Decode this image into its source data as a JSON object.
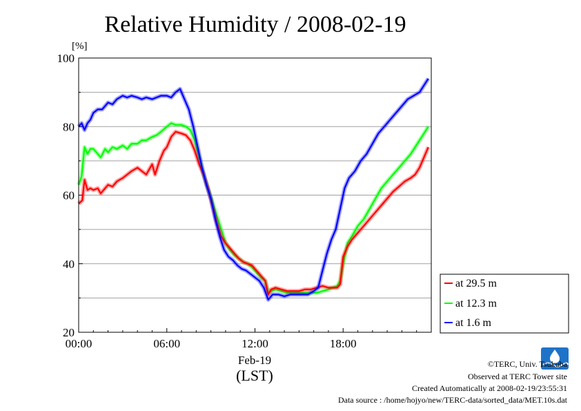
{
  "chart_data": {
    "type": "line",
    "title": "Relative Humidity / 2008-02-19",
    "ylabel": "[%]",
    "xlabel": "(LST)",
    "x_date_label": "Feb-19",
    "x_ticks": [
      "00:00",
      "06:00",
      "12:00",
      "18:00"
    ],
    "x_tick_hours": [
      0,
      6,
      12,
      18
    ],
    "xlim_hours": [
      0,
      24
    ],
    "ylim": [
      20,
      100
    ],
    "y_ticks": [
      20,
      40,
      60,
      80,
      100
    ],
    "grid": true,
    "legend_position": "right",
    "series": [
      {
        "name": "at 29.5 m",
        "color": "#ff0000",
        "x_hours": [
          0,
          0.25,
          0.4,
          0.6,
          0.8,
          1.0,
          1.3,
          1.5,
          1.8,
          2.0,
          2.3,
          2.6,
          3.0,
          3.3,
          3.6,
          4.0,
          4.3,
          4.6,
          5.0,
          5.2,
          5.5,
          5.8,
          6.0,
          6.3,
          6.6,
          7.0,
          7.3,
          7.6,
          7.9,
          8.2,
          8.5,
          8.8,
          9.1,
          9.4,
          9.7,
          10.0,
          10.3,
          10.6,
          10.9,
          11.2,
          11.5,
          11.8,
          12.1,
          12.4,
          12.7,
          12.9,
          13.1,
          13.4,
          13.8,
          14.2,
          14.6,
          15.0,
          15.4,
          15.8,
          16.2,
          16.6,
          17.0,
          17.3,
          17.6,
          17.8,
          18.0,
          18.3,
          18.6,
          19.0,
          19.4,
          19.8,
          20.2,
          20.6,
          21.0,
          21.4,
          21.8,
          22.2,
          22.6,
          22.9,
          23.2,
          23.5,
          23.8
        ],
        "values": [
          57.5,
          58.5,
          64.5,
          61.5,
          62,
          61.5,
          62,
          60.5,
          62,
          63,
          62.5,
          64,
          65,
          66,
          67,
          68,
          67,
          66,
          69,
          66,
          70,
          73,
          74,
          77,
          78.5,
          78,
          77.5,
          76,
          73,
          69,
          66,
          62,
          57,
          52,
          48,
          46,
          44.5,
          43,
          41.5,
          40.5,
          40,
          39.5,
          38,
          36.5,
          35,
          31,
          32.5,
          33,
          32.5,
          32,
          32,
          32,
          32.5,
          32.5,
          33,
          33.5,
          33,
          33,
          33,
          34,
          42,
          45,
          47,
          49,
          51,
          53,
          55,
          57,
          59,
          61,
          62.5,
          64,
          65,
          66,
          68,
          71,
          74
        ]
      },
      {
        "name": "at 12.3 m",
        "color": "#00ff00",
        "x_hours": [
          0,
          0.2,
          0.4,
          0.6,
          0.8,
          1.0,
          1.3,
          1.5,
          1.8,
          2.0,
          2.3,
          2.6,
          3.0,
          3.3,
          3.6,
          4.0,
          4.3,
          4.6,
          5.0,
          5.3,
          5.6,
          6.0,
          6.3,
          6.6,
          7.0,
          7.3,
          7.6,
          7.9,
          8.2,
          8.5,
          8.8,
          9.1,
          9.4,
          9.7,
          10.0,
          10.3,
          10.6,
          10.9,
          11.2,
          11.5,
          11.8,
          12.1,
          12.4,
          12.7,
          12.9,
          13.1,
          13.4,
          13.8,
          14.2,
          14.6,
          15.0,
          15.4,
          15.8,
          16.2,
          16.6,
          17.0,
          17.3,
          17.6,
          17.8,
          18.0,
          18.3,
          18.6,
          19.0,
          19.4,
          19.8,
          20.2,
          20.6,
          21.0,
          21.4,
          21.8,
          22.2,
          22.6,
          22.9,
          23.2,
          23.5,
          23.8
        ],
        "values": [
          63,
          65.5,
          74,
          72,
          73.5,
          73.5,
          72,
          71,
          73.5,
          72.5,
          74,
          73.5,
          74.5,
          73.5,
          75,
          75,
          76,
          76,
          77,
          77.5,
          78.5,
          80,
          81,
          80.5,
          80.5,
          80,
          79,
          76,
          71,
          66,
          62,
          58,
          54,
          50,
          46,
          44,
          42.5,
          41.5,
          40.5,
          40,
          39,
          37.5,
          36,
          35,
          31.5,
          32,
          32.5,
          32,
          31.5,
          31.5,
          31.5,
          31.5,
          31.5,
          31.5,
          32,
          32.5,
          33,
          33.5,
          35,
          40,
          46,
          48,
          51,
          53,
          56,
          59,
          62,
          64,
          66,
          68,
          70,
          72,
          74,
          76,
          78,
          80
        ]
      },
      {
        "name": "at 1.6 m",
        "color": "#0000ff",
        "x_hours": [
          0,
          0.2,
          0.4,
          0.6,
          0.8,
          1.0,
          1.3,
          1.6,
          2.0,
          2.3,
          2.6,
          3.0,
          3.3,
          3.6,
          4.0,
          4.3,
          4.6,
          5.0,
          5.3,
          5.6,
          6.0,
          6.3,
          6.6,
          6.9,
          7.2,
          7.5,
          7.8,
          8.1,
          8.4,
          8.7,
          9.0,
          9.3,
          9.6,
          9.9,
          10.2,
          10.5,
          10.8,
          11.1,
          11.4,
          11.7,
          12.0,
          12.3,
          12.6,
          12.9,
          13.2,
          13.6,
          14.0,
          14.4,
          14.8,
          15.2,
          15.6,
          16.0,
          16.3,
          16.6,
          16.9,
          17.2,
          17.5,
          17.8,
          18.1,
          18.4,
          18.8,
          19.2,
          19.6,
          20.0,
          20.4,
          20.8,
          21.2,
          21.6,
          22.0,
          22.4,
          22.8,
          23.2,
          23.5,
          23.8
        ],
        "values": [
          80,
          81,
          79,
          81,
          82,
          84,
          85,
          85,
          87,
          86.5,
          88,
          89,
          88.5,
          89,
          88.5,
          88,
          88.5,
          88,
          88.5,
          89,
          89,
          88.5,
          90,
          91,
          88,
          85,
          80,
          74,
          68,
          63,
          59,
          53,
          48,
          44,
          42,
          41,
          39.5,
          38.5,
          38,
          37,
          36,
          35,
          33,
          29.5,
          31,
          31,
          30.5,
          31,
          31,
          31,
          31,
          32,
          33,
          38,
          43,
          47,
          50,
          56,
          62,
          65,
          67,
          70,
          72,
          75,
          78,
          80,
          82,
          84,
          86,
          88,
          89,
          90,
          92,
          94
        ]
      }
    ]
  },
  "credits": {
    "copyright": "©TERC, Univ. Tsukuba",
    "site": "Observed at TERC Tower site",
    "created": "Created Automatically at 2008-02-19/23:55:31",
    "source": "Data source : /home/hojyo/new/TERC-data/sorted_data/MET.10s.dat"
  },
  "logo": {
    "icon": "terc-logo-icon",
    "color": "#1e73c8"
  }
}
